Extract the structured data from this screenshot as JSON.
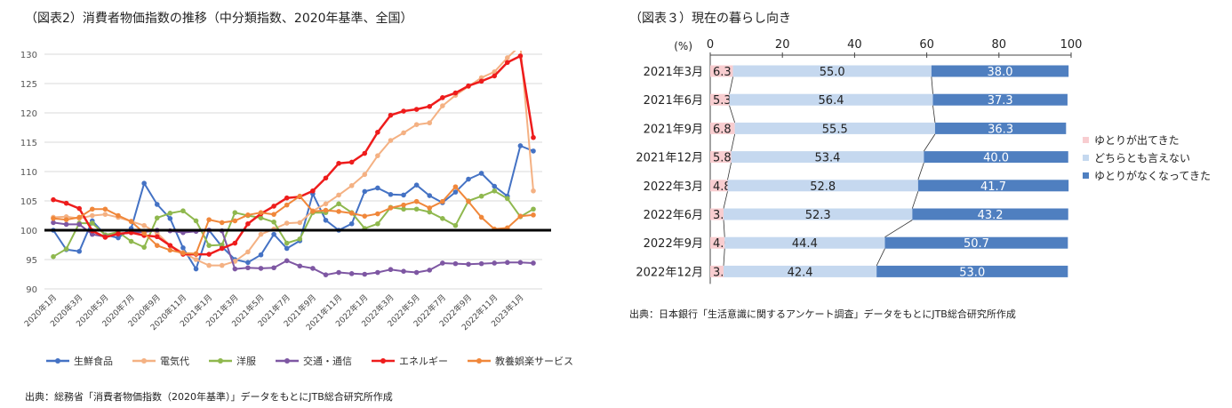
{
  "left_panel": {
    "title": "（図表2）消費者物価指数の推移（中分類指数、2020年基準、全国）",
    "source": "出典：総務省「消費者物価指数（2020年基準）」データをもとにJTB総合研究所作成"
  },
  "right_panel": {
    "title": "（図表３）現在の暮らし向き",
    "unit_label": "(%)",
    "source": "出典：日本銀行「生活意識に関するアンケート調査」データをもとにJTB総合研究所作成"
  },
  "chart_data": [
    {
      "type": "line",
      "title": "（図表2）消費者物価指数の推移（中分類指数、2020年基準、全国）",
      "ylim": [
        90,
        130
      ],
      "yticks": [
        90,
        95,
        100,
        105,
        110,
        115,
        120,
        125,
        130
      ],
      "reference_line": 100,
      "x": [
        "2020年1月",
        "2020年2月",
        "2020年3月",
        "2020年4月",
        "2020年5月",
        "2020年6月",
        "2020年7月",
        "2020年8月",
        "2020年9月",
        "2020年10月",
        "2020年11月",
        "2020年12月",
        "2021年1月",
        "2021年2月",
        "2021年3月",
        "2021年4月",
        "2021年5月",
        "2021年6月",
        "2021年7月",
        "2021年8月",
        "2021年9月",
        "2021年10月",
        "2021年11月",
        "2021年12月",
        "2022年1月",
        "2022年2月",
        "2022年3月",
        "2022年4月",
        "2022年5月",
        "2022年6月",
        "2022年7月",
        "2022年8月",
        "2022年9月",
        "2022年10月",
        "2022年11月",
        "2022年12月",
        "2023年1月",
        "2023年2月"
      ],
      "xticklabels": [
        "2020年1月",
        "2020年3月",
        "2020年5月",
        "2020年7月",
        "2020年9月",
        "2020年11月",
        "2021年1月",
        "2021年3月",
        "2021年5月",
        "2021年7月",
        "2021年9月",
        "2021年11月",
        "2022年1月",
        "2022年3月",
        "2022年5月",
        "2022年7月",
        "2022年9月",
        "2022年11月",
        "2023年1月"
      ],
      "series": [
        {
          "name": "生鮮食品",
          "color": "#4472c4",
          "values": [
            100.0,
            96.7,
            96.4,
            101.6,
            99.2,
            98.7,
            100.3,
            108.0,
            104.4,
            102.0,
            97.0,
            93.4,
            100.0,
            97.2,
            95.0,
            94.5,
            95.8,
            99.3,
            96.9,
            98.2,
            106.2,
            101.7,
            100.0,
            101.1,
            106.6,
            107.2,
            106.1,
            106.0,
            107.7,
            105.9,
            104.7,
            106.5,
            108.7,
            109.7,
            107.5,
            105.8,
            114.4,
            113.5
          ]
        },
        {
          "name": "電気代",
          "color": "#f4b183",
          "values": [
            102.2,
            102.3,
            102.0,
            102.5,
            102.7,
            102.2,
            101.5,
            100.8,
            99.5,
            97.4,
            96.2,
            95.0,
            94.0,
            94.0,
            94.7,
            96.3,
            99.3,
            100.2,
            101.2,
            101.3,
            103.3,
            104.5,
            106.0,
            107.6,
            109.5,
            112.7,
            115.3,
            116.6,
            118.0,
            118.3,
            121.2,
            123.0,
            124.5,
            126.0,
            127.0,
            129.4,
            131.5,
            106.7
          ]
        },
        {
          "name": "洋服",
          "color": "#8fb84e",
          "values": [
            95.5,
            96.8,
            101.2,
            101.2,
            99.2,
            99.7,
            98.1,
            97.1,
            102.1,
            102.9,
            103.3,
            101.6,
            97.4,
            97.5,
            103.0,
            102.5,
            102.1,
            101.4,
            97.8,
            98.5,
            103.0,
            103.0,
            104.5,
            103.0,
            100.3,
            101.1,
            103.9,
            103.6,
            103.6,
            103.1,
            102.0,
            100.8,
            105.0,
            105.8,
            106.7,
            105.4,
            102.3,
            103.6
          ]
        },
        {
          "name": "交通・通信",
          "color": "#7e57a3",
          "values": [
            101.3,
            101.0,
            101.0,
            99.3,
            98.9,
            99.3,
            99.6,
            99.7,
            100.0,
            99.9,
            99.6,
            99.8,
            100.0,
            99.9,
            93.4,
            93.6,
            93.5,
            93.6,
            94.8,
            93.9,
            93.5,
            92.4,
            92.8,
            92.6,
            92.5,
            92.8,
            93.3,
            93.0,
            92.8,
            93.2,
            94.4,
            94.3,
            94.2,
            94.3,
            94.4,
            94.5,
            94.5,
            94.4
          ]
        },
        {
          "name": "エネルギー",
          "color": "#ee1c1c",
          "values": [
            105.2,
            104.6,
            103.7,
            99.9,
            98.8,
            99.4,
            99.6,
            99.1,
            98.9,
            97.4,
            95.9,
            95.9,
            95.9,
            96.9,
            97.8,
            101.1,
            102.8,
            104.1,
            105.5,
            105.7,
            106.7,
            108.9,
            111.4,
            111.6,
            113.1,
            116.7,
            119.6,
            120.3,
            120.6,
            121.1,
            122.6,
            123.4,
            124.6,
            125.4,
            126.3,
            128.6,
            129.7,
            115.8
          ]
        },
        {
          "name": "教養娯楽サービス",
          "color": "#f0873a",
          "values": [
            102.0,
            101.8,
            102.2,
            103.6,
            103.6,
            102.5,
            101.5,
            99.5,
            97.4,
            96.6,
            96.1,
            96.0,
            101.8,
            101.3,
            101.6,
            102.6,
            103.0,
            102.7,
            104.3,
            105.8,
            103.2,
            103.4,
            103.2,
            102.9,
            102.4,
            102.8,
            103.8,
            104.3,
            104.9,
            103.8,
            104.9,
            107.4,
            104.9,
            102.2,
            100.2,
            100.4,
            102.4,
            102.6
          ]
        }
      ]
    },
    {
      "type": "bar",
      "orientation": "horizontal",
      "stacked": true,
      "title": "（図表３）現在の暮らし向き",
      "categories": [
        "2021年3月",
        "2021年6月",
        "2021年9月",
        "2021年12月",
        "2022年3月",
        "2022年6月",
        "2022年9月",
        "2022年12月"
      ],
      "xlim": [
        0,
        100
      ],
      "xticks": [
        0,
        20,
        40,
        60,
        80,
        100
      ],
      "xlabel": "(%)",
      "series": [
        {
          "name": "ゆとりが出てきた",
          "color": "#f8cdd0",
          "values": [
            6.3,
            5.3,
            6.8,
            5.8,
            4.8,
            3.7,
            4.0,
            3.7
          ]
        },
        {
          "name": "どちらとも言えない",
          "color": "#c5d8ef",
          "values": [
            55.0,
            56.4,
            55.5,
            53.4,
            52.8,
            52.3,
            44.4,
            42.4
          ]
        },
        {
          "name": "ゆとりがなくなってきた",
          "color": "#4f7fc0",
          "values": [
            38.0,
            37.3,
            36.3,
            40.0,
            41.7,
            43.2,
            50.7,
            53.0
          ]
        }
      ]
    }
  ]
}
